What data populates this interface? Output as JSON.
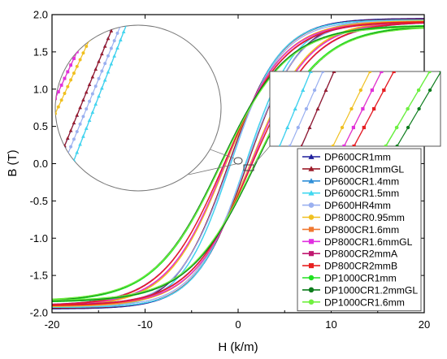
{
  "chart_data": {
    "type": "line",
    "title": "",
    "xlabel": "H (k/m)",
    "ylabel": "B (T)",
    "xlim": [
      -20,
      20
    ],
    "ylim": [
      -2.0,
      2.0
    ],
    "x_ticks": [
      -20,
      -10,
      0,
      10,
      20
    ],
    "y_ticks": [
      -2.0,
      -1.5,
      -1.0,
      -0.5,
      0.0,
      0.5,
      1.0,
      1.5,
      2.0
    ],
    "x_tick_labels": [
      "-20",
      "-10",
      "0",
      "10",
      "20"
    ],
    "y_tick_labels": [
      "-2.0",
      "-1.5",
      "-1.0",
      "-0.5",
      "0.0",
      "0.5",
      "1.0",
      "1.5",
      "2.0"
    ],
    "grid": false,
    "legend_position": "bottom-right",
    "curve_shape": "hysteresis loop",
    "series": [
      {
        "name": "DP600CR1mm",
        "color": "#1f1f9c",
        "marker": "triangle",
        "hc": 1.0,
        "bs": 1.95,
        "k": 0.18
      },
      {
        "name": "DP600CR1mmGL",
        "color": "#9c1c2a",
        "marker": "triangle",
        "hc": 1.0,
        "bs": 1.94,
        "k": 0.18
      },
      {
        "name": "DP600CR1.4mm",
        "color": "#2f8fd8",
        "marker": "triangle",
        "hc": 0.8,
        "bs": 1.93,
        "k": 0.19
      },
      {
        "name": "DP600CR1.5mm",
        "color": "#40d8f0",
        "marker": "triangle",
        "hc": 0.8,
        "bs": 1.93,
        "k": 0.19
      },
      {
        "name": "DP600HR4mm",
        "color": "#9ab0f0",
        "marker": "circle",
        "hc": 0.9,
        "bs": 1.92,
        "k": 0.18
      },
      {
        "name": "DP800CR0.95mm",
        "color": "#f0c020",
        "marker": "circle",
        "hc": 1.3,
        "bs": 1.92,
        "k": 0.16
      },
      {
        "name": "DP800CR1.6mm",
        "color": "#f07830",
        "marker": "square",
        "hc": 1.4,
        "bs": 1.91,
        "k": 0.16
      },
      {
        "name": "DP800CR1.6mmGL",
        "color": "#e030e0",
        "marker": "square",
        "hc": 1.4,
        "bs": 1.9,
        "k": 0.16
      },
      {
        "name": "DP800CR2mmA",
        "color": "#c01870",
        "marker": "square",
        "hc": 1.5,
        "bs": 1.9,
        "k": 0.15
      },
      {
        "name": "DP800CR2mmB",
        "color": "#e82020",
        "marker": "square",
        "hc": 1.5,
        "bs": 1.91,
        "k": 0.15
      },
      {
        "name": "DP1000CR1mm",
        "color": "#20e020",
        "marker": "circle",
        "hc": 1.8,
        "bs": 1.86,
        "k": 0.14
      },
      {
        "name": "DP1000CR1.2mmGL",
        "color": "#0c7c1c",
        "marker": "circle",
        "hc": 1.9,
        "bs": 1.85,
        "k": 0.14
      },
      {
        "name": "DP1000CR1.6mm",
        "color": "#70f040",
        "marker": "circle",
        "hc": 1.8,
        "bs": 1.84,
        "k": 0.14
      }
    ]
  }
}
